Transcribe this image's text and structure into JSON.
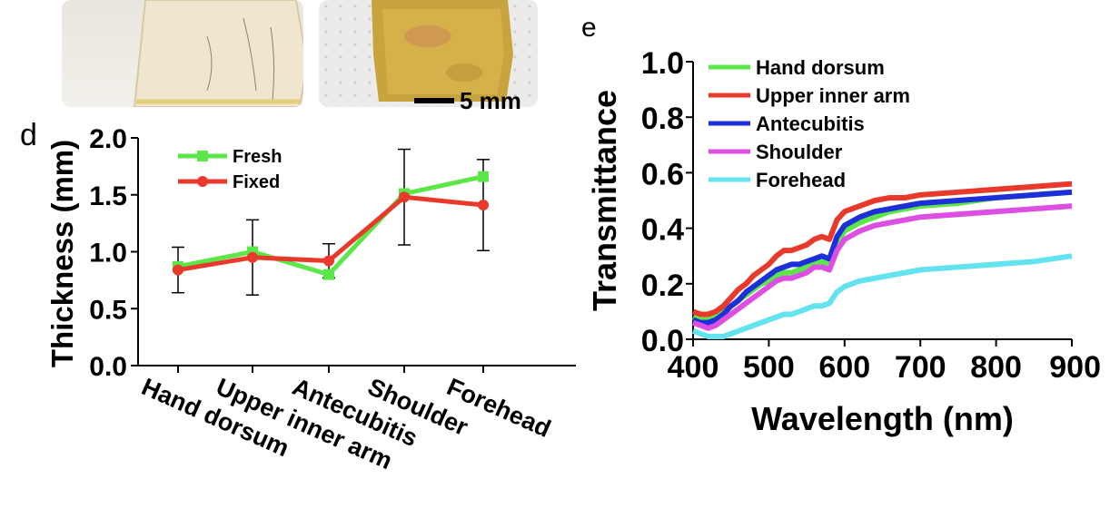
{
  "panel_labels": {
    "d": "d",
    "e": "e"
  },
  "scale_bar": {
    "label": "5 mm"
  },
  "chart_data": [
    {
      "panel": "d",
      "type": "line",
      "xlabel": "",
      "ylabel": "Thickness (mm)",
      "categories": [
        "Hand dorsum",
        "Upper inner arm",
        "Antecubitis",
        "Shoulder",
        "Forehead"
      ],
      "ylim": [
        0.0,
        2.0
      ],
      "yticks": [
        "0.0",
        "0.5",
        "1.0",
        "1.5",
        "2.0"
      ],
      "legend_position": "top-left",
      "series": [
        {
          "name": "Fresh",
          "color": "#5ce64a",
          "marker": "square",
          "values": [
            0.87,
            1.0,
            0.8,
            1.51,
            1.66
          ]
        },
        {
          "name": "Fixed",
          "color": "#e8392b",
          "marker": "circle",
          "values": [
            0.84,
            0.95,
            0.92,
            1.48,
            1.41
          ],
          "error": [
            0.2,
            0.33,
            0.15,
            0.42,
            0.4
          ]
        }
      ]
    },
    {
      "panel": "e",
      "type": "line",
      "xlabel": "Wavelength (nm)",
      "ylabel": "Transmittance",
      "xlim": [
        400,
        900
      ],
      "ylim": [
        0.0,
        1.0
      ],
      "xticks": [
        "400",
        "500",
        "600",
        "700",
        "800",
        "900"
      ],
      "yticks": [
        "0.0",
        "0.2",
        "0.4",
        "0.6",
        "0.8",
        "1.0"
      ],
      "legend_position": "top-left",
      "x": [
        400,
        410,
        420,
        430,
        440,
        450,
        460,
        470,
        480,
        490,
        500,
        510,
        520,
        530,
        540,
        550,
        560,
        570,
        580,
        590,
        600,
        620,
        640,
        660,
        680,
        700,
        750,
        800,
        850,
        900
      ],
      "series": [
        {
          "name": "Hand dorsum",
          "color": "#5ce64a",
          "values": [
            0.08,
            0.07,
            0.07,
            0.08,
            0.1,
            0.12,
            0.14,
            0.16,
            0.18,
            0.2,
            0.21,
            0.23,
            0.24,
            0.24,
            0.25,
            0.26,
            0.28,
            0.28,
            0.27,
            0.35,
            0.39,
            0.42,
            0.44,
            0.46,
            0.47,
            0.48,
            0.49,
            0.51,
            0.52,
            0.53
          ]
        },
        {
          "name": "Upper inner arm",
          "color": "#e8392b",
          "values": [
            0.1,
            0.09,
            0.09,
            0.1,
            0.12,
            0.15,
            0.18,
            0.2,
            0.23,
            0.25,
            0.27,
            0.3,
            0.32,
            0.32,
            0.33,
            0.34,
            0.36,
            0.37,
            0.36,
            0.43,
            0.46,
            0.48,
            0.5,
            0.51,
            0.51,
            0.52,
            0.53,
            0.54,
            0.55,
            0.56
          ]
        },
        {
          "name": "Antecubitis",
          "color": "#1c2fd8",
          "values": [
            0.07,
            0.06,
            0.06,
            0.07,
            0.09,
            0.12,
            0.14,
            0.17,
            0.19,
            0.21,
            0.23,
            0.25,
            0.26,
            0.27,
            0.27,
            0.28,
            0.29,
            0.3,
            0.29,
            0.37,
            0.41,
            0.44,
            0.46,
            0.47,
            0.48,
            0.49,
            0.5,
            0.51,
            0.52,
            0.53
          ]
        },
        {
          "name": "Shoulder",
          "color": "#dd4fe3",
          "values": [
            0.06,
            0.05,
            0.04,
            0.05,
            0.07,
            0.09,
            0.11,
            0.13,
            0.15,
            0.17,
            0.19,
            0.21,
            0.22,
            0.22,
            0.23,
            0.24,
            0.26,
            0.26,
            0.25,
            0.32,
            0.36,
            0.39,
            0.41,
            0.42,
            0.43,
            0.44,
            0.45,
            0.46,
            0.47,
            0.48
          ]
        },
        {
          "name": "Forehead",
          "color": "#63e3ef",
          "values": [
            0.03,
            0.02,
            0.01,
            0.01,
            0.01,
            0.02,
            0.03,
            0.04,
            0.05,
            0.06,
            0.07,
            0.08,
            0.09,
            0.09,
            0.1,
            0.11,
            0.12,
            0.12,
            0.13,
            0.17,
            0.19,
            0.21,
            0.22,
            0.23,
            0.24,
            0.25,
            0.26,
            0.27,
            0.28,
            0.3
          ]
        }
      ]
    }
  ]
}
